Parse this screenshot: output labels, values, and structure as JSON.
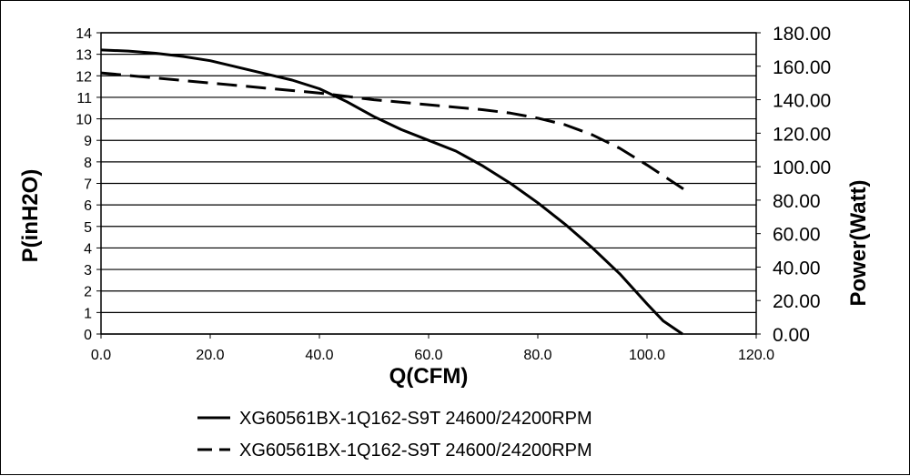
{
  "chart_data": {
    "type": "line",
    "xlabel": "Q(CFM)",
    "ylabel": "P(inH2O)",
    "y2label": "Power(Watt)",
    "xlim": [
      0,
      120
    ],
    "ylim": [
      0,
      14
    ],
    "y2lim": [
      0,
      180
    ],
    "x_ticks": [
      "0.0",
      "20.0",
      "40.0",
      "60.0",
      "80.0",
      "100.0",
      "120.0"
    ],
    "y_ticks": [
      "0",
      "1",
      "2",
      "3",
      "4",
      "5",
      "6",
      "7",
      "8",
      "9",
      "10",
      "11",
      "12",
      "13",
      "14"
    ],
    "y2_ticks": [
      "0.00",
      "20.00",
      "40.00",
      "60.00",
      "80.00",
      "100.00",
      "120.00",
      "140.00",
      "160.00",
      "180.00"
    ],
    "grid": true,
    "legend_position": "bottom",
    "series": [
      {
        "name": "XG60561BX-1Q162-S9T 24600/24200RPM",
        "axis": "left",
        "style": "solid",
        "x": [
          0,
          5,
          10,
          15,
          20,
          25,
          30,
          35,
          40,
          45,
          50,
          55,
          60,
          65,
          70,
          75,
          80,
          85,
          90,
          95,
          100,
          103,
          106.5
        ],
        "y": [
          13.2,
          13.15,
          13.05,
          12.9,
          12.7,
          12.4,
          12.1,
          11.8,
          11.4,
          10.8,
          10.1,
          9.5,
          9.0,
          8.5,
          7.8,
          7.0,
          6.1,
          5.1,
          4.0,
          2.8,
          1.4,
          0.6,
          0.0
        ]
      },
      {
        "name": "XG60561BX-1Q162-S9T 24600/24200RPM",
        "axis": "right",
        "style": "dashed",
        "x": [
          0,
          10,
          20,
          30,
          40,
          50,
          60,
          70,
          75,
          80,
          85,
          90,
          95,
          100,
          107
        ],
        "y": [
          156,
          153,
          150,
          147,
          144,
          140,
          137,
          134,
          132,
          129,
          125,
          119,
          111,
          101,
          86
        ]
      }
    ]
  }
}
